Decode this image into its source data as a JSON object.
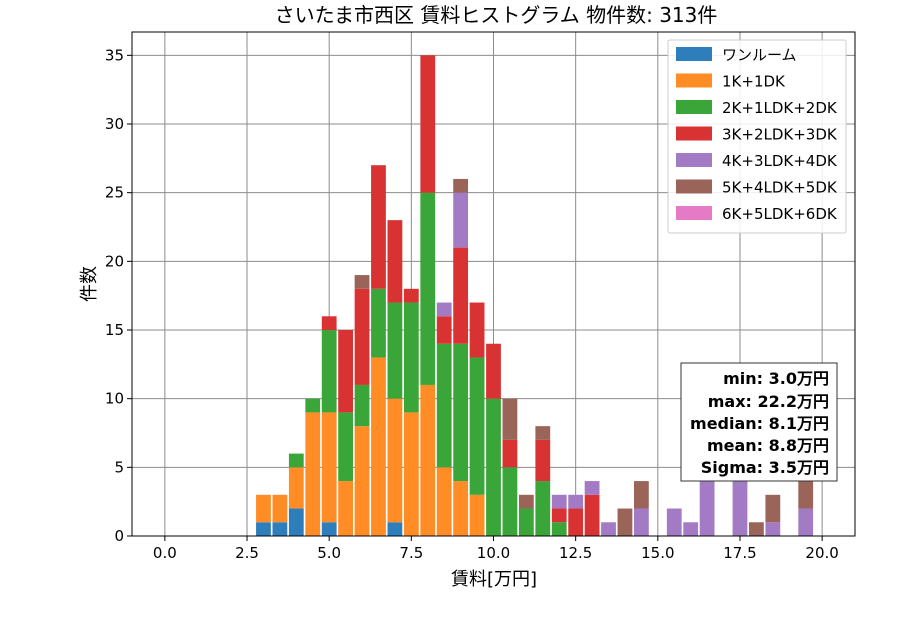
{
  "chart_data": {
    "type": "bar",
    "stacked": true,
    "title": "さいたま市西区 賃料ヒストグラム 物件数: 313件",
    "xlabel": "賃料[万円]",
    "ylabel": "件数",
    "xlim": [
      -1.0,
      21.0
    ],
    "ylim": [
      0,
      36.7
    ],
    "xticks": [
      0.0,
      2.5,
      5.0,
      7.5,
      10.0,
      12.5,
      15.0,
      17.5,
      20.0
    ],
    "xtick_labels": [
      "0.0",
      "2.5",
      "5.0",
      "7.5",
      "10.0",
      "12.5",
      "15.0",
      "17.5",
      "20.0"
    ],
    "yticks": [
      0,
      5,
      10,
      15,
      20,
      25,
      30,
      35
    ],
    "ytick_labels": [
      "0",
      "5",
      "10",
      "15",
      "20",
      "25",
      "30",
      "35"
    ],
    "grid": true,
    "legend_position": "top-right",
    "bin_width": 0.5,
    "bin_centers": [
      3.0,
      3.5,
      4.0,
      4.5,
      5.0,
      5.5,
      6.0,
      6.5,
      7.0,
      7.5,
      8.0,
      8.5,
      9.0,
      9.5,
      10.0,
      10.5,
      11.0,
      11.5,
      12.0,
      12.5,
      13.0,
      13.5,
      14.0,
      14.5,
      15.0,
      15.5,
      16.0,
      16.5,
      17.0,
      17.5,
      18.0,
      18.5,
      19.0,
      19.5
    ],
    "series": [
      {
        "name": "ワンルーム",
        "color": "#2e7ebc",
        "values": [
          1,
          1,
          2,
          0,
          1,
          0,
          0,
          0,
          1,
          0,
          0,
          0,
          0,
          0,
          0,
          0,
          0,
          0,
          0,
          0,
          0,
          0,
          0,
          0,
          0,
          0,
          0,
          0,
          0,
          0,
          0,
          0,
          0,
          0
        ]
      },
      {
        "name": "1K+1DK",
        "color": "#ff8c24",
        "values": [
          2,
          2,
          3,
          9,
          8,
          4,
          8,
          13,
          9,
          9,
          11,
          5,
          4,
          3,
          0,
          0,
          0,
          0,
          0,
          0,
          0,
          0,
          0,
          0,
          0,
          0,
          0,
          0,
          0,
          0,
          0,
          0,
          0,
          0
        ]
      },
      {
        "name": "2K+1LDK+2DK",
        "color": "#3aa63a",
        "values": [
          0,
          0,
          1,
          1,
          6,
          5,
          3,
          5,
          7,
          8,
          14,
          9,
          10,
          10,
          10,
          5,
          2,
          4,
          1,
          0,
          0,
          0,
          0,
          0,
          0,
          0,
          0,
          0,
          0,
          0,
          0,
          0,
          0,
          0
        ]
      },
      {
        "name": "3K+2LDK+3DK",
        "color": "#d93232",
        "values": [
          0,
          0,
          0,
          0,
          1,
          6,
          7,
          9,
          6,
          1,
          10,
          2,
          7,
          4,
          4,
          2,
          0,
          3,
          1,
          2,
          3,
          0,
          0,
          0,
          0,
          0,
          0,
          0,
          0,
          0,
          0,
          0,
          0,
          0
        ]
      },
      {
        "name": "4K+3LDK+4DK",
        "color": "#a27bc4",
        "values": [
          0,
          0,
          0,
          0,
          0,
          0,
          0,
          0,
          0,
          0,
          0,
          1,
          4,
          0,
          0,
          0,
          0,
          0,
          1,
          1,
          1,
          1,
          0,
          2,
          0,
          2,
          1,
          5,
          0,
          5,
          0,
          1,
          0,
          2
        ]
      },
      {
        "name": "5K+4LDK+5DK",
        "color": "#9a6458",
        "values": [
          0,
          0,
          0,
          0,
          0,
          0,
          1,
          0,
          0,
          0,
          0,
          0,
          1,
          0,
          0,
          3,
          1,
          1,
          0,
          0,
          0,
          0,
          2,
          2,
          0,
          0,
          0,
          0,
          0,
          0,
          1,
          2,
          0,
          4
        ]
      },
      {
        "name": "6K+5LDK+6DK",
        "color": "#e57ac6",
        "values": [
          0,
          0,
          0,
          0,
          0,
          0,
          0,
          0,
          0,
          0,
          0,
          0,
          0,
          0,
          0,
          0,
          0,
          0,
          0,
          0,
          0,
          0,
          0,
          0,
          0,
          0,
          0,
          0,
          0,
          0,
          0,
          0,
          0,
          0
        ]
      }
    ],
    "stats": {
      "min": "min: 3.0万円",
      "max": "max: 22.2万円",
      "median": "median: 8.1万円",
      "mean": "mean: 8.8万円",
      "sigma": "Sigma: 3.5万円"
    }
  }
}
